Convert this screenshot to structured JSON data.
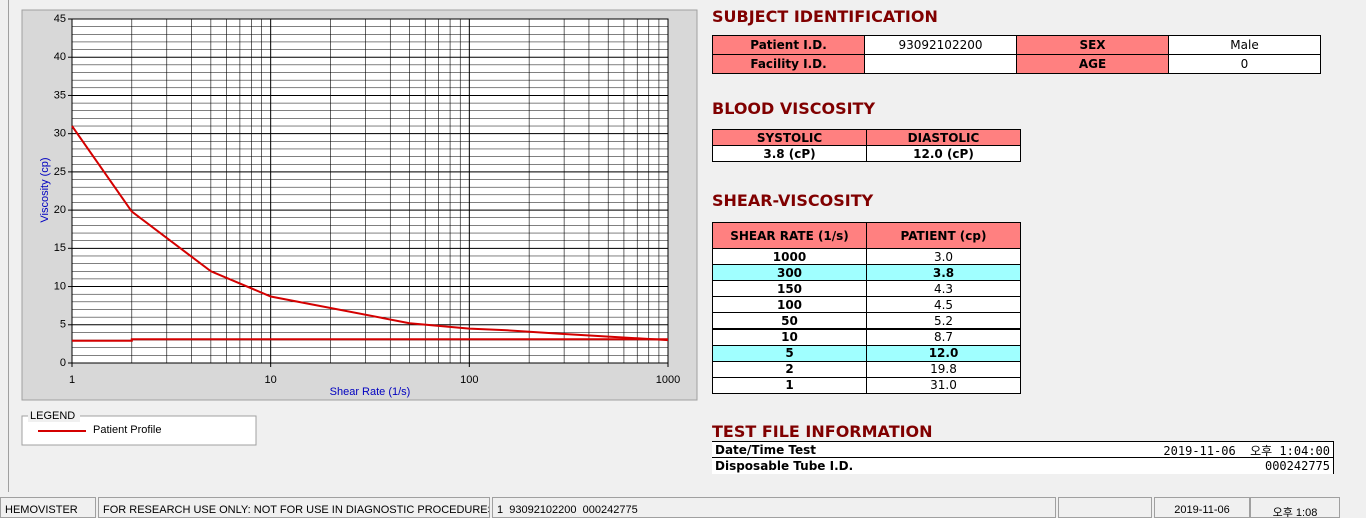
{
  "chart_data": {
    "type": "line",
    "xlabel": "Shear Rate (1/s)",
    "ylabel": "Viscosity (cp)",
    "xscale": "log",
    "xlim": [
      1,
      1000
    ],
    "xticks": [
      1,
      10,
      100,
      1000
    ],
    "ylim": [
      0,
      45
    ],
    "yticks": [
      0,
      5,
      10,
      15,
      20,
      25,
      30,
      35,
      40,
      45
    ],
    "grid": true,
    "minor_grid": true,
    "series": [
      {
        "name": "Patient Profile",
        "color": "#d40000",
        "x": [
          1,
          2,
          5,
          10,
          50,
          100,
          150,
          300,
          1000
        ],
        "values": [
          31.0,
          19.8,
          12.0,
          8.7,
          5.2,
          4.5,
          4.3,
          3.8,
          3.0
        ]
      },
      {
        "color": "#d40000",
        "x": [
          1,
          2,
          2,
          1000
        ],
        "values": [
          2.9,
          2.9,
          3.1,
          3.1
        ]
      }
    ],
    "legend": {
      "title": "LEGEND"
    }
  },
  "subject": {
    "title": "SUBJECT IDENTIFICATION",
    "rows": [
      [
        "Patient I.D.",
        "93092102200",
        "SEX",
        "Male"
      ],
      [
        "Facility I.D.",
        null,
        "AGE",
        "0"
      ]
    ]
  },
  "blood": {
    "title": "BLOOD VISCOSITY",
    "headers": [
      "SYSTOLIC",
      "DIASTOLIC"
    ],
    "values": [
      "3.8 (cP)",
      "12.0 (cP)"
    ]
  },
  "shear": {
    "title": "SHEAR-VISCOSITY",
    "headers": [
      "SHEAR RATE (1/s)",
      "PATIENT (cp)"
    ],
    "rows": [
      [
        "1000",
        "3.0"
      ],
      [
        "300",
        "3.8"
      ],
      [
        "150",
        "4.3"
      ],
      [
        "100",
        "4.5"
      ],
      [
        "50",
        "5.2"
      ],
      [
        "10",
        "8.7"
      ],
      [
        "5",
        "12.0"
      ],
      [
        "2",
        "19.8"
      ],
      [
        "1",
        "31.0"
      ]
    ],
    "highlight_rows": [
      1,
      6
    ]
  },
  "test_file": {
    "title": "TEST FILE INFORMATION",
    "rows": [
      [
        "Date/Time Test",
        "2019-11-06  오후 1:04:00"
      ],
      [
        "Disposable Tube I.D.",
        "000242775"
      ]
    ]
  },
  "status_bar": [
    "HEMOVISTER",
    "FOR RESEARCH USE ONLY: NOT FOR USE IN DIAGNOSTIC PROCEDURES",
    "1  93092102200  000242775",
    "2019-11-06",
    "오후 1:08"
  ]
}
